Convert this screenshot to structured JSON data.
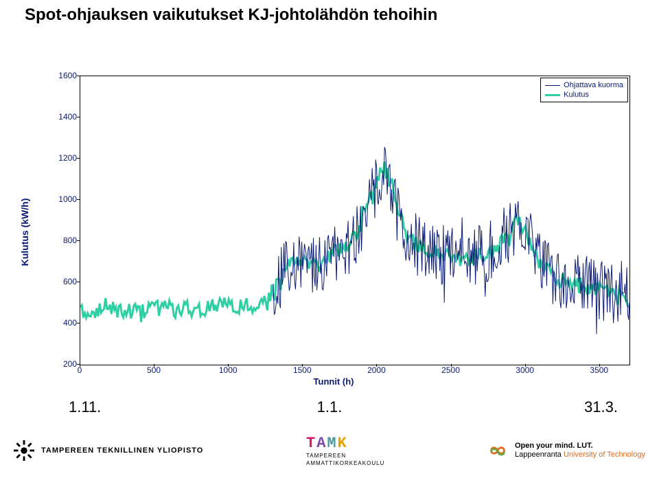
{
  "title": "Spot-ohjauksen vaikutukset KJ-johtolähdön tehoihin",
  "chart": {
    "type": "line",
    "xlabel": "Tunnit (h)",
    "ylabel": "Kulutus (kW/h)",
    "xlim": [
      0,
      3700
    ],
    "ylim": [
      200,
      1600
    ],
    "xticks": [
      0,
      500,
      1000,
      1500,
      2000,
      2500,
      3000,
      3500
    ],
    "yticks": [
      200,
      400,
      600,
      800,
      1000,
      1200,
      1400,
      1600
    ],
    "background_color": "#ffffff",
    "axis_color": "#000000",
    "tick_font_color": "#0a1a72",
    "tick_fontsize": 12,
    "label_fontsize": 14,
    "legend": {
      "position": "top-right",
      "items": [
        {
          "label": "Ohjattava kuorma",
          "color": "#0a1a72",
          "width": 1
        },
        {
          "label": "Kulutus",
          "color": "#2ecfa3",
          "width": 3
        }
      ]
    },
    "series": [
      {
        "name": "Kulutus",
        "color": "#2ecfa3",
        "width": 3,
        "segment": {
          "x_start": 0,
          "x_end": 3700,
          "step": 10,
          "base_levels": [
            [
              0,
              450
            ],
            [
              200,
              470
            ],
            [
              400,
              460
            ],
            [
              600,
              480
            ],
            [
              800,
              470
            ],
            [
              1000,
              490
            ],
            [
              1200,
              480
            ],
            [
              1300,
              560
            ],
            [
              1400,
              680
            ],
            [
              1500,
              700
            ],
            [
              1600,
              680
            ],
            [
              1700,
              750
            ],
            [
              1800,
              780
            ],
            [
              1850,
              820
            ],
            [
              1900,
              900
            ],
            [
              1950,
              1000
            ],
            [
              2000,
              1080
            ],
            [
              2050,
              1150
            ],
            [
              2100,
              1080
            ],
            [
              2150,
              930
            ],
            [
              2200,
              830
            ],
            [
              2300,
              760
            ],
            [
              2400,
              740
            ],
            [
              2500,
              720
            ],
            [
              2600,
              700
            ],
            [
              2700,
              740
            ],
            [
              2800,
              760
            ],
            [
              2900,
              860
            ],
            [
              2950,
              900
            ],
            [
              3000,
              840
            ],
            [
              3100,
              700
            ],
            [
              3200,
              620
            ],
            [
              3300,
              600
            ],
            [
              3400,
              580
            ],
            [
              3500,
              560
            ],
            [
              3600,
              540
            ],
            [
              3700,
              520
            ]
          ],
          "noise_amp": 80,
          "noise_freq": 0.9
        }
      },
      {
        "name": "Ohjattava kuorma",
        "color": "#0a1a72",
        "width": 1,
        "segment": {
          "x_start": 1300,
          "x_end": 3700,
          "step": 6,
          "base_levels": [
            [
              1300,
              560
            ],
            [
              1400,
              680
            ],
            [
              1500,
              700
            ],
            [
              1600,
              680
            ],
            [
              1700,
              750
            ],
            [
              1800,
              780
            ],
            [
              1850,
              820
            ],
            [
              1900,
              900
            ],
            [
              1950,
              1000
            ],
            [
              2000,
              1080
            ],
            [
              2050,
              1150
            ],
            [
              2100,
              1080
            ],
            [
              2150,
              930
            ],
            [
              2200,
              830
            ],
            [
              2300,
              760
            ],
            [
              2400,
              740
            ],
            [
              2500,
              720
            ],
            [
              2600,
              700
            ],
            [
              2700,
              740
            ],
            [
              2800,
              760
            ],
            [
              2900,
              860
            ],
            [
              2950,
              900
            ],
            [
              3000,
              840
            ],
            [
              3100,
              700
            ],
            [
              3200,
              620
            ],
            [
              3300,
              600
            ],
            [
              3400,
              580
            ],
            [
              3500,
              560
            ],
            [
              3600,
              540
            ],
            [
              3700,
              520
            ]
          ],
          "noise_amp": 300,
          "noise_freq": 2.2
        }
      }
    ]
  },
  "dates": {
    "left": "1.11.",
    "center": "1.1.",
    "right": "31.3."
  },
  "footer": {
    "tut": "TAMPEREEN TEKNILLINEN YLIOPISTO",
    "tamk": {
      "logo": "TAMK",
      "l1": "TAMPEREEN",
      "l2": "AMMATTIKORKEAKOULU",
      "colors": [
        "#d9156a",
        "#7a4aa6",
        "#4a9a9a",
        "#e6a100"
      ]
    },
    "lut": {
      "line1": "Open your mind.",
      "line2": "LUT.",
      "line3": "Lappeenranta University of Technology",
      "colors": {
        "orange": "#e06a1e",
        "green": "#6aa63f"
      }
    }
  }
}
